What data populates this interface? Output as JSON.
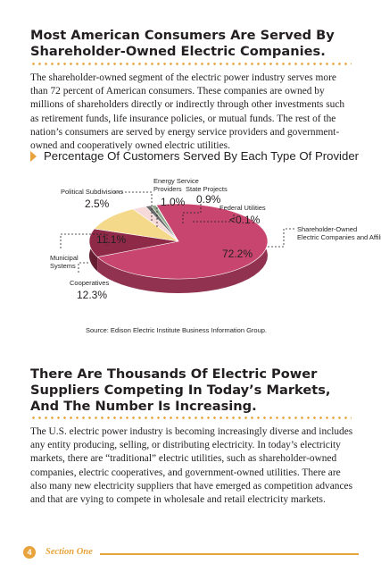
{
  "section1": {
    "heading_line1": "Most American Consumers Are Served By",
    "heading_line2": "Shareholder-Owned Electric Companies.",
    "paragraph": "The shareholder-owned segment of the electric power industry serves more than 72 percent of American consumers. These companies are owned by millions of shareholders directly or indirectly through other investments such as retirement funds, life insurance policies, or mutual funds. The rest of the nation’s consumers are served by energy service providers and government-owned and cooperatively owned electric utilities."
  },
  "chart_title": "Percentage Of Customers Served By Each Type Of Provider",
  "chart_data": {
    "type": "pie",
    "title": "Percentage Of Customers Served By Each Type Of Provider",
    "slices": [
      {
        "name": "Shareholder-Owned Electric Companies and Affiliates",
        "label_line1": "Shareholder-Owned",
        "label_line2": "Electric Companies and Affiliates",
        "value": 72.2,
        "value_label": "72.2%",
        "color": "#c8456f"
      },
      {
        "name": "Cooperatives",
        "label_line1": "Cooperatives",
        "value": 12.3,
        "value_label": "12.3%",
        "color": "#8e2a47"
      },
      {
        "name": "Municipal Systems",
        "label_line1": "Municipal",
        "label_line2": "Systems",
        "value": 11.1,
        "value_label": "11.1%",
        "color": "#f4d98a"
      },
      {
        "name": "Political Subdivisions",
        "label_line1": "Political Subdivisions",
        "value": 2.5,
        "value_label": "2.5%",
        "color": "#f6dada"
      },
      {
        "name": "Energy Service Providers",
        "label_line1": "Energy Service",
        "label_line2": "Providers",
        "value": 1.0,
        "value_label": "1.0%",
        "color": "#6b6b6b"
      },
      {
        "name": "State Projects",
        "label_line1": "State Projects",
        "value": 0.9,
        "value_label": "0.9%",
        "color": "#8fa88c"
      },
      {
        "name": "Federal Utilities",
        "label_line1": "Federal Utilities",
        "value": 0.1,
        "value_label": "<0.1%",
        "color": "#b9b9b9"
      }
    ],
    "source": "Source: Edison Electric Institute Business Information Group."
  },
  "section2": {
    "heading_line1": "There Are Thousands Of Electric Power",
    "heading_line2": "Suppliers Competing In Today’s Markets,",
    "heading_line3": "And The Number Is Increasing.",
    "paragraph": "The U.S. electric power industry is becoming increasingly diverse and includes any entity producing, selling, or distributing electricity. In today’s electricity markets, there are “traditional” electric utilities, such as shareholder-owned companies, electric cooperatives, and government-owned utilities. There are also many new electricity suppliers that have emerged as competition advances and that are vying to compete in wholesale and retail electricity markets."
  },
  "footer": {
    "page_number": "4",
    "section_label": "Section One"
  }
}
